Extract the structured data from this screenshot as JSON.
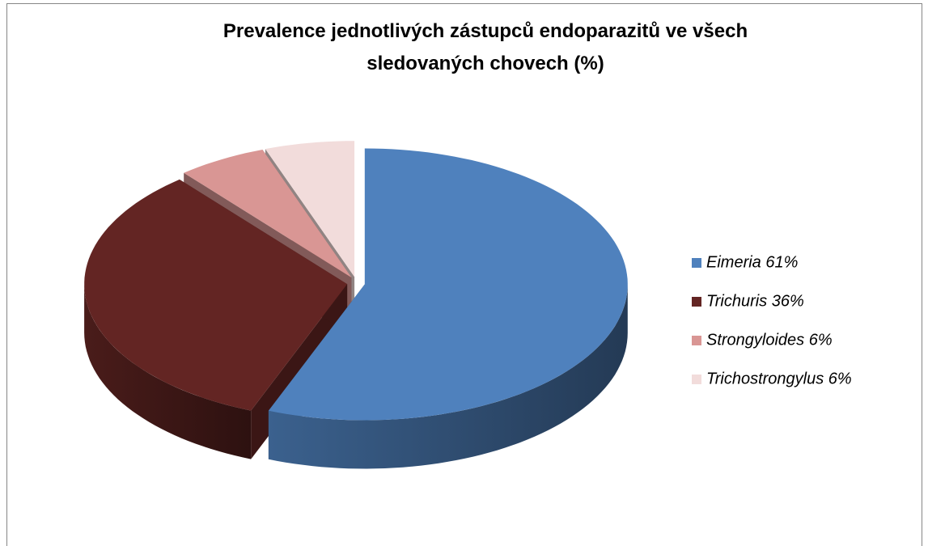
{
  "chart_data": {
    "type": "pie",
    "title": [
      "Prevalence jednotlivých zástupců endoparazitů ve všech",
      "sledovaných chovech (%)"
    ],
    "categories": [
      "Eimeria 61%",
      "Trichuris 36%",
      "Strongyloides 6%",
      "Trichostrongylus 6%"
    ],
    "values": [
      61,
      36,
      6,
      6
    ],
    "colors": [
      "#4f81bd",
      "#632523",
      "#d99694",
      "#f2dcdb"
    ],
    "legend": "right"
  }
}
